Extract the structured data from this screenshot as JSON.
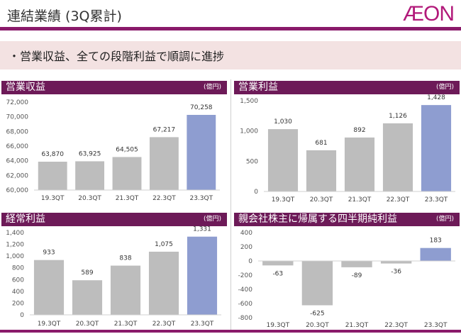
{
  "header": {
    "title": "連結業績 (3Q累計)",
    "logo_text": "ÆON",
    "summary": "・営業収益、全ての段階利益で順調に進捗"
  },
  "colors": {
    "accent": "#6d1a58",
    "bar_past": "#bdbdbd",
    "bar_current": "#8e9dd0"
  },
  "chart_data": [
    {
      "type": "bar",
      "title": "営業収益",
      "unit": "(億円)",
      "categories": [
        "19.3QT",
        "20.3QT",
        "21.3QT",
        "22.3QT",
        "23.3QT"
      ],
      "values": [
        63870,
        63925,
        64505,
        67217,
        70258
      ],
      "value_labels": [
        "63,870",
        "63,925",
        "64,505",
        "67,217",
        "70,258"
      ],
      "ylim": [
        60000,
        72000
      ],
      "yticks": [
        60000,
        62000,
        64000,
        66000,
        68000,
        70000,
        72000
      ],
      "ytick_labels": [
        "60,000",
        "62,000",
        "64,000",
        "66,000",
        "68,000",
        "70,000",
        "72,000"
      ]
    },
    {
      "type": "bar",
      "title": "営業利益",
      "unit": "(億円)",
      "categories": [
        "19.3QT",
        "20.3QT",
        "21.3QT",
        "22.3QT",
        "23.3QT"
      ],
      "values": [
        1030,
        681,
        892,
        1126,
        1428
      ],
      "value_labels": [
        "1,030",
        "681",
        "892",
        "1,126",
        "1,428"
      ],
      "ylim": [
        0,
        1500
      ],
      "yticks": [
        0,
        500,
        1000,
        1500
      ],
      "ytick_labels": [
        "0",
        "500",
        "1,000",
        "1,500"
      ]
    },
    {
      "type": "bar",
      "title": "経常利益",
      "unit": "(億円)",
      "categories": [
        "19.3QT",
        "20.3QT",
        "21.3QT",
        "22.3QT",
        "23.3QT"
      ],
      "values": [
        933,
        589,
        838,
        1075,
        1331
      ],
      "value_labels": [
        "933",
        "589",
        "838",
        "1,075",
        "1,331"
      ],
      "ylim": [
        0,
        1400
      ],
      "yticks": [
        0,
        200,
        400,
        600,
        800,
        1000,
        1200,
        1400
      ],
      "ytick_labels": [
        "0",
        "200",
        "400",
        "600",
        "800",
        "1,000",
        "1,200",
        "1,400"
      ]
    },
    {
      "type": "bar",
      "title": "親会社株主に帰属する四半期純利益",
      "unit": "(億円)",
      "categories": [
        "19.3QT",
        "20.3QT",
        "21.3QT",
        "22.3QT",
        "23.3QT"
      ],
      "values": [
        -63,
        -625,
        -89,
        -36,
        183
      ],
      "value_labels": [
        "-63",
        "-625",
        "-89",
        "-36",
        "183"
      ],
      "ylim": [
        -800,
        400
      ],
      "yticks": [
        -800,
        -600,
        -400,
        -200,
        0,
        200,
        400
      ],
      "ytick_labels": [
        "-800",
        "-600",
        "-400",
        "-200",
        "0",
        "200",
        "400"
      ]
    }
  ]
}
